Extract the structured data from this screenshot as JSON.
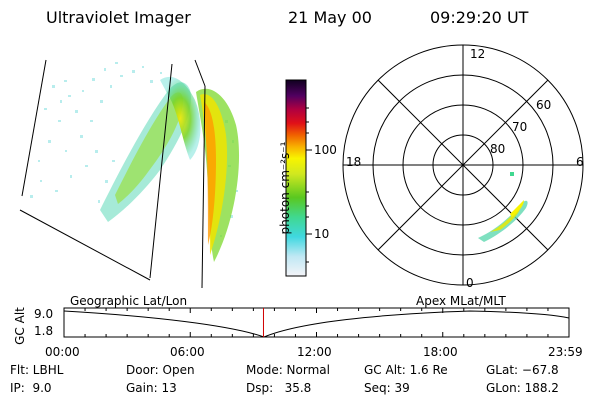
{
  "header": {
    "instrument": "Ultraviolet Imager",
    "date": "21 May 00",
    "time": "09:29:20 UT"
  },
  "colorbar": {
    "units": "photon cm⁻²s⁻¹",
    "tick_100": "100",
    "tick_10": "10"
  },
  "polar": {
    "mlt_top": "12",
    "mlt_left": "18",
    "mlt_right": "6",
    "mlt_bottom": "0",
    "lat_60": "60",
    "lat_70": "70",
    "lat_80": "80"
  },
  "timeline": {
    "ylabel": "GC Alt",
    "y_top": "9.0",
    "y_bottom": "1.8",
    "left_title": "Geographic Lat/Lon",
    "right_title": "Apex MLat/MLT",
    "ticks": [
      "00:00",
      "06:00",
      "12:00",
      "18:00",
      "23:59"
    ],
    "current_fraction": 0.395
  },
  "info": {
    "flt": "Flt: LBHL",
    "ip": "IP:  9.0",
    "door": "Door: Open",
    "gain": "Gain: 13",
    "mode": "Mode: Normal",
    "dsp": "Dsp:   35.8",
    "gcalt": "GC Alt: 1.6 Re",
    "seq": "Seq: 39",
    "glat": "GLat: −67.8",
    "glon": "GLon: 188.2"
  }
}
